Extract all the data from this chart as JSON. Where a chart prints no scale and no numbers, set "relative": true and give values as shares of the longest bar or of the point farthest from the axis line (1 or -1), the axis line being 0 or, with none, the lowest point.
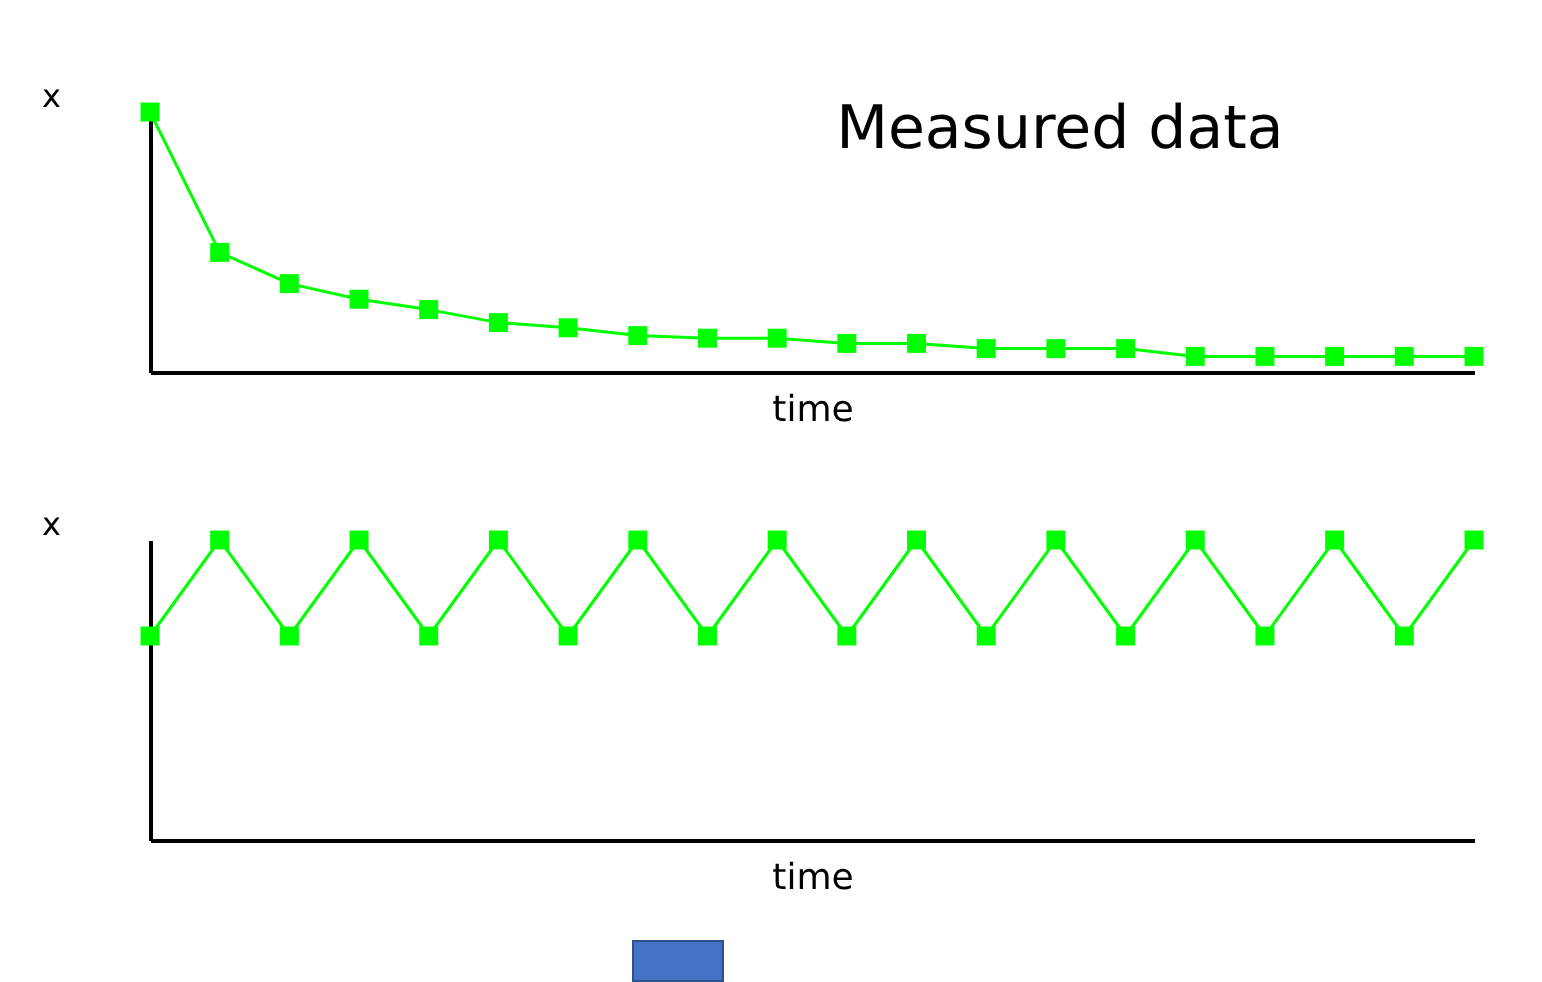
{
  "chart_data": [
    {
      "type": "line",
      "title": "Measured data",
      "xlabel": "time",
      "ylabel": "x",
      "relative": true,
      "marker": "square",
      "categories": [
        null,
        null,
        null,
        null,
        null,
        null,
        null,
        null,
        null,
        null,
        null,
        null,
        null,
        null,
        null,
        null,
        null,
        null,
        null,
        null
      ],
      "series": [
        {
          "color": "#00ff00",
          "values": [
            1,
            0.46,
            0.34,
            0.28,
            0.24,
            0.19,
            0.17,
            0.14,
            0.13,
            0.13,
            0.11,
            0.11,
            0.09,
            0.09,
            0.09,
            0.06,
            0.06,
            0.06,
            0.06,
            0.06
          ]
        }
      ]
    },
    {
      "type": "line",
      "xlabel": "time",
      "ylabel": "x",
      "relative": true,
      "marker": "square",
      "categories": [
        null,
        null,
        null,
        null,
        null,
        null,
        null,
        null,
        null,
        null,
        null,
        null,
        null,
        null,
        null,
        null,
        null,
        null,
        null,
        null
      ],
      "series": [
        {
          "color": "#00ff00",
          "values": [
            0.68,
            1,
            0.68,
            1,
            0.68,
            1,
            0.68,
            1,
            0.68,
            1,
            0.68,
            1,
            0.68,
            1,
            0.68,
            1,
            0.68,
            1,
            0.68,
            1
          ]
        }
      ]
    }
  ]
}
